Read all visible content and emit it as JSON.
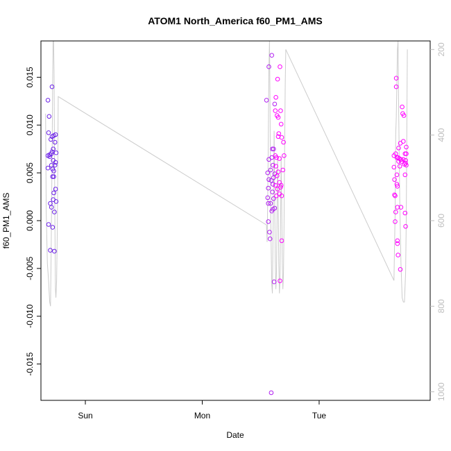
{
  "chart_data": {
    "type": "scatter",
    "title": "ATOM1 North_America f60_PM1_AMS",
    "xlabel": "Date",
    "ylabel": "f60_PM1_AMS",
    "x_unit": "day (Sun 00:00 = 0)",
    "xlim": [
      -0.38,
      2.95
    ],
    "ylim": [
      -0.0188,
      0.0188
    ],
    "x_ticks": [
      {
        "value": 0,
        "label": "Sun"
      },
      {
        "value": 1,
        "label": "Mon"
      },
      {
        "value": 2,
        "label": "Tue"
      }
    ],
    "y_ticks": [
      -0.015,
      -0.01,
      -0.005,
      0.0,
      0.005,
      0.01,
      0.015
    ],
    "y_tick_labels": [
      "-0.015",
      "-0.010",
      "-0.005",
      "0.000",
      "0.005",
      "0.010",
      "0.015"
    ],
    "right_axis": {
      "label": "",
      "color": "#bdbdbd",
      "lim": [
        1020,
        180
      ],
      "ticks": [
        200,
        400,
        600,
        800,
        1000
      ],
      "tick_labels": [
        "200",
        "400",
        "600",
        "800",
        "1000"
      ]
    },
    "grid": false,
    "colors": {
      "early": "#6a1ee8",
      "late": "#ff00ff",
      "altitude_line": "#cccccc"
    },
    "series": [
      {
        "points": [
          [
            -0.32,
            0.0068
          ],
          [
            -0.32,
            0.0126
          ],
          [
            -0.315,
            0.0092
          ],
          [
            -0.32,
            0.0055
          ],
          [
            -0.31,
            0.0109
          ],
          [
            -0.305,
            0.0069
          ],
          [
            -0.315,
            -0.0004
          ],
          [
            -0.305,
            0.0067
          ],
          [
            -0.3,
            0.0018
          ],
          [
            -0.3,
            -0.0031
          ],
          [
            -0.295,
            0.0085
          ],
          [
            -0.29,
            0.007
          ],
          [
            -0.29,
            0.0058
          ],
          [
            -0.29,
            0.0014
          ],
          [
            -0.285,
            0.014
          ],
          [
            -0.285,
            0.0088
          ],
          [
            -0.285,
            0.0072
          ],
          [
            -0.28,
            0.0054
          ],
          [
            -0.28,
            0.0046
          ],
          [
            -0.28,
            -0.0007
          ],
          [
            -0.275,
            0.0075
          ],
          [
            -0.275,
            0.0063
          ],
          [
            -0.275,
            0.0022
          ],
          [
            -0.27,
            0.0089
          ],
          [
            -0.27,
            0.0052
          ],
          [
            -0.27,
            0.0046
          ],
          [
            -0.27,
            0.0029
          ],
          [
            -0.265,
            0.0009
          ],
          [
            -0.265,
            -0.0032
          ],
          [
            -0.26,
            0.0082
          ],
          [
            -0.26,
            0.0058
          ],
          [
            -0.255,
            0.009
          ],
          [
            -0.255,
            0.0061
          ],
          [
            -0.255,
            0.0033
          ],
          [
            -0.25,
            0.0071
          ],
          [
            -0.25,
            0.002
          ]
        ]
      },
      {
        "points": [
          [
            1.55,
            0.0126
          ],
          [
            1.56,
            0.005
          ],
          [
            1.56,
            0.0024
          ],
          [
            1.565,
            0.0034
          ],
          [
            1.565,
            0.0018
          ],
          [
            1.565,
            -0.0001
          ],
          [
            1.57,
            0.0161
          ],
          [
            1.57,
            0.0064
          ],
          [
            1.57,
            0.0043
          ],
          [
            1.575,
            -0.0012
          ],
          [
            1.58,
            -0.0019
          ],
          [
            1.585,
            0.0053
          ],
          [
            1.585,
            0.0018
          ],
          [
            1.59,
            0.0042
          ],
          [
            1.59,
            -0.018
          ],
          [
            1.595,
            0.0173
          ],
          [
            1.595,
            0.0066
          ],
          [
            1.595,
            0.001
          ],
          [
            1.6,
            0.0075
          ],
          [
            1.6,
            0.003
          ],
          [
            1.605,
            0.0058
          ],
          [
            1.605,
            0.0038
          ],
          [
            1.605,
            0.0012
          ],
          [
            1.61,
            0.0075
          ],
          [
            1.61,
            0.0045
          ],
          [
            1.61,
            0.0023
          ],
          [
            1.615,
            -0.0064
          ],
          [
            1.62,
            0.0049
          ],
          [
            1.62,
            0.0013
          ],
          [
            1.62,
            0.0122
          ],
          [
            1.625,
            0.0115
          ],
          [
            1.625,
            0.0037
          ],
          [
            1.625,
            0.0068
          ],
          [
            1.63,
            0.0129
          ],
          [
            1.63,
            0.0057
          ],
          [
            1.635,
            0.0026
          ],
          [
            1.635,
            0.0066
          ],
          [
            1.64,
            0.011
          ],
          [
            1.64,
            0.0047
          ],
          [
            1.645,
            0.0033
          ],
          [
            1.645,
            0.0148
          ],
          [
            1.65,
            0.0108
          ],
          [
            1.65,
            0.0088
          ],
          [
            1.65,
            0.0051
          ],
          [
            1.655,
            0.0091
          ],
          [
            1.66,
            0.0065
          ],
          [
            1.66,
            0.004
          ],
          [
            1.66,
            0.0028
          ],
          [
            1.665,
            0.0161
          ],
          [
            1.665,
            -0.0063
          ],
          [
            1.67,
            0.0115
          ],
          [
            1.67,
            0.0035
          ],
          [
            1.675,
            0.0101
          ],
          [
            1.675,
            0.0037
          ],
          [
            1.68,
            0.0087
          ],
          [
            1.68,
            0.0026
          ],
          [
            1.68,
            -0.0021
          ],
          [
            1.69,
            0.0053
          ],
          [
            1.695,
            0.0082
          ],
          [
            1.7,
            0.0068
          ]
        ]
      },
      {
        "points": [
          [
            2.64,
            0.0068
          ],
          [
            2.64,
            0.0056
          ],
          [
            2.645,
            0.0043
          ],
          [
            2.645,
            0.0027
          ],
          [
            2.65,
            0.0026
          ],
          [
            2.65,
            -0.0001
          ],
          [
            2.655,
            0.0009
          ],
          [
            2.655,
            0.007
          ],
          [
            2.66,
            0.0149
          ],
          [
            2.66,
            0.014
          ],
          [
            2.665,
            0.0066
          ],
          [
            2.665,
            0.0048
          ],
          [
            2.665,
            0.0038
          ],
          [
            2.67,
            0.0036
          ],
          [
            2.67,
            0.0014
          ],
          [
            2.67,
            -0.0021
          ],
          [
            2.67,
            -0.0024
          ],
          [
            2.675,
            -0.0036
          ],
          [
            2.675,
            0.0066
          ],
          [
            2.68,
            0.0076
          ],
          [
            2.68,
            0.0062
          ],
          [
            2.685,
            0.0065
          ],
          [
            2.69,
            0.0057
          ],
          [
            2.695,
            -0.0051
          ],
          [
            2.695,
            0.0081
          ],
          [
            2.7,
            0.0064
          ],
          [
            2.7,
            0.0014
          ],
          [
            2.705,
            0.0062
          ],
          [
            2.71,
            0.0119
          ],
          [
            2.715,
            0.0112
          ],
          [
            2.72,
            0.0083
          ],
          [
            2.72,
            0.0064
          ],
          [
            2.725,
            0.011
          ],
          [
            2.73,
            0.0059
          ],
          [
            2.735,
            0.007
          ],
          [
            2.735,
            0.0048
          ],
          [
            2.735,
            0.0008
          ],
          [
            2.74,
            0.0063
          ],
          [
            2.74,
            0.006
          ],
          [
            2.74,
            -0.0006
          ],
          [
            2.745,
            0.0077
          ],
          [
            2.745,
            0.007
          ],
          [
            2.745,
            0.0058
          ]
        ]
      }
    ],
    "altitude_line": [
      [
        -0.34,
        350
      ],
      [
        -0.335,
        580
      ],
      [
        -0.325,
        700
      ],
      [
        -0.315,
        740
      ],
      [
        -0.305,
        790
      ],
      [
        -0.298,
        800
      ],
      [
        -0.292,
        660
      ],
      [
        -0.288,
        540
      ],
      [
        -0.284,
        430
      ],
      [
        -0.28,
        290
      ],
      [
        -0.276,
        150
      ],
      [
        -0.272,
        150
      ],
      [
        -0.268,
        250
      ],
      [
        -0.264,
        440
      ],
      [
        -0.26,
        620
      ],
      [
        -0.256,
        760
      ],
      [
        -0.252,
        780
      ],
      [
        -0.246,
        740
      ],
      [
        -0.24,
        620
      ],
      [
        -0.236,
        480
      ],
      [
        -0.232,
        310
      ],
      [
        1.55,
        610
      ],
      [
        1.555,
        650
      ],
      [
        1.56,
        560
      ],
      [
        1.565,
        410
      ],
      [
        1.57,
        250
      ],
      [
        1.575,
        150
      ],
      [
        1.58,
        330
      ],
      [
        1.585,
        560
      ],
      [
        1.59,
        670
      ],
      [
        1.595,
        750
      ],
      [
        1.6,
        770
      ],
      [
        1.605,
        650
      ],
      [
        1.61,
        510
      ],
      [
        1.615,
        390
      ],
      [
        1.62,
        560
      ],
      [
        1.625,
        700
      ],
      [
        1.63,
        760
      ],
      [
        1.635,
        720
      ],
      [
        1.64,
        590
      ],
      [
        1.645,
        450
      ],
      [
        1.65,
        560
      ],
      [
        1.655,
        700
      ],
      [
        1.66,
        770
      ],
      [
        1.665,
        740
      ],
      [
        1.67,
        600
      ],
      [
        1.675,
        450
      ],
      [
        1.68,
        560
      ],
      [
        1.685,
        700
      ],
      [
        1.69,
        760
      ],
      [
        1.695,
        720
      ],
      [
        1.7,
        600
      ],
      [
        1.705,
        420
      ],
      [
        1.71,
        280
      ],
      [
        1.715,
        200
      ],
      [
        2.64,
        740
      ],
      [
        2.645,
        660
      ],
      [
        2.65,
        580
      ],
      [
        2.655,
        400
      ],
      [
        2.66,
        360
      ],
      [
        2.665,
        280
      ],
      [
        2.67,
        200
      ],
      [
        2.675,
        150
      ],
      [
        2.68,
        330
      ],
      [
        2.69,
        560
      ],
      [
        2.7,
        700
      ],
      [
        2.71,
        780
      ],
      [
        2.72,
        790
      ],
      [
        2.73,
        790
      ],
      [
        2.74,
        720
      ],
      [
        2.745,
        600
      ],
      [
        2.75,
        400
      ],
      [
        2.755,
        200
      ]
    ]
  }
}
